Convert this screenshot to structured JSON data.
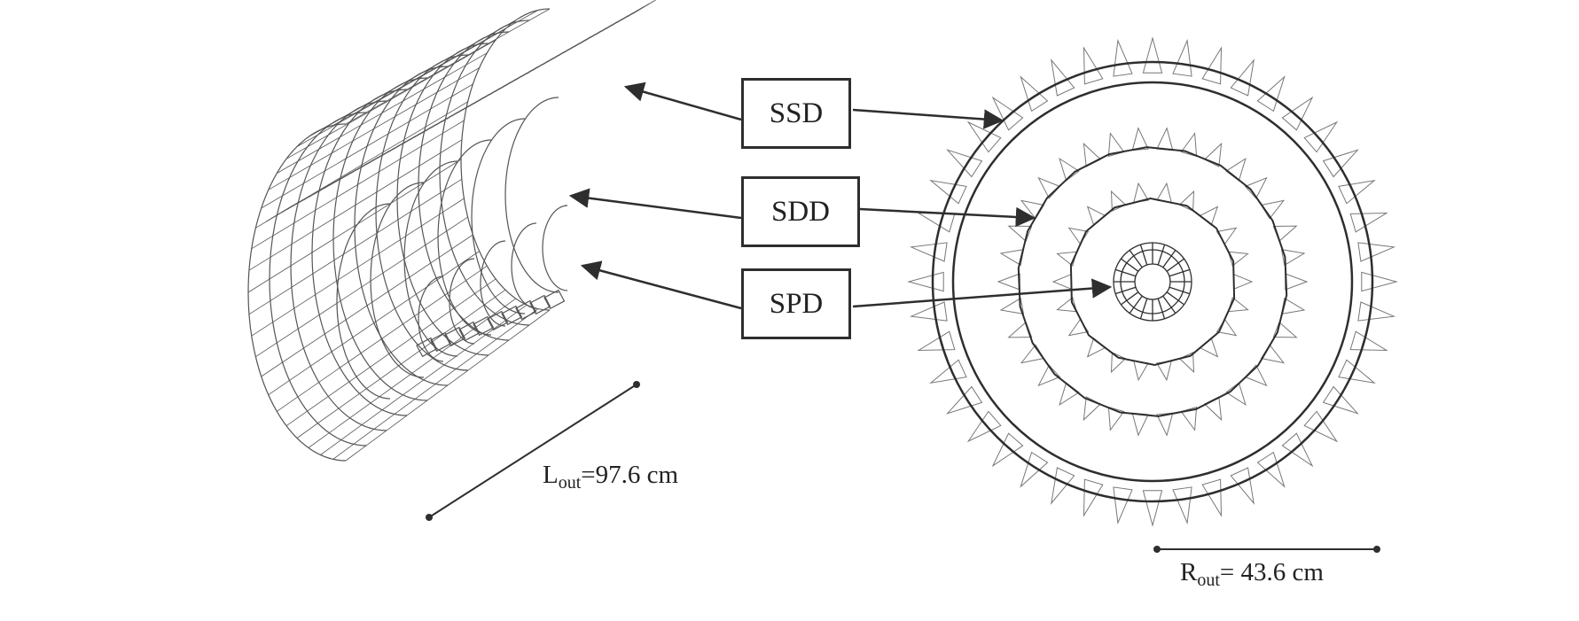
{
  "labels": {
    "ssd": "SSD",
    "sdd": "SDD",
    "spd": "SPD"
  },
  "dimensions": {
    "length": {
      "symbol": "L",
      "subscript": "out",
      "value": "=97.6 cm"
    },
    "radius": {
      "symbol": "R",
      "subscript": "out",
      "value": "= 43.6 cm"
    }
  },
  "colors": {
    "line": "#2e2e2e",
    "detail": "#555555",
    "background": "#ffffff"
  }
}
